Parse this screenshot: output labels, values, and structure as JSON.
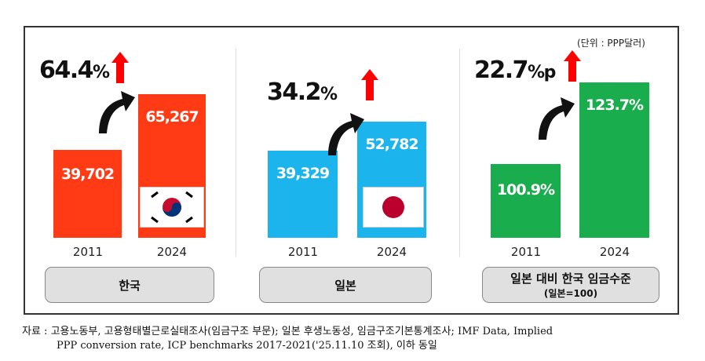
{
  "chart_data": [
    {
      "type": "bar",
      "categories": [
        "2011",
        "2024"
      ],
      "values": [
        39702,
        65267
      ],
      "value_labels": [
        "39,702",
        "65,267"
      ],
      "change": "64.4",
      "change_unit": "%",
      "group_label": "한국",
      "color": "#ff3b16",
      "flag": "korea-flag"
    },
    {
      "type": "bar",
      "categories": [
        "2011",
        "2024"
      ],
      "values": [
        39329,
        52782
      ],
      "value_labels": [
        "39,329",
        "52,782"
      ],
      "change": "34.2",
      "change_unit": "%",
      "group_label": "일본",
      "color": "#1cb4ec",
      "flag": "japan-flag"
    },
    {
      "type": "bar",
      "categories": [
        "2011",
        "2024"
      ],
      "values": [
        100.9,
        123.7
      ],
      "value_labels": [
        "100.9%",
        "123.7%"
      ],
      "change": "22.7",
      "change_unit": "%p",
      "group_label": "일본 대비 한국 임금수준",
      "group_sublabel": "(일본=100)",
      "color": "#19ad4e"
    }
  ],
  "unit_note": "(단위 : PPP달러)",
  "source_line1": "자료 : 고용노동부, 고용형태별근로실태조사(임금구조 부문); 일본 후생노동성, 임금구조기본통계조사; IMF Data, Implied",
  "source_line2": "PPP conversion rate, ICP benchmarks 2017-2021('25.11.10 조회), 이하 동일",
  "colors": {
    "arrow": "#ff0000",
    "frame": "#333333"
  }
}
